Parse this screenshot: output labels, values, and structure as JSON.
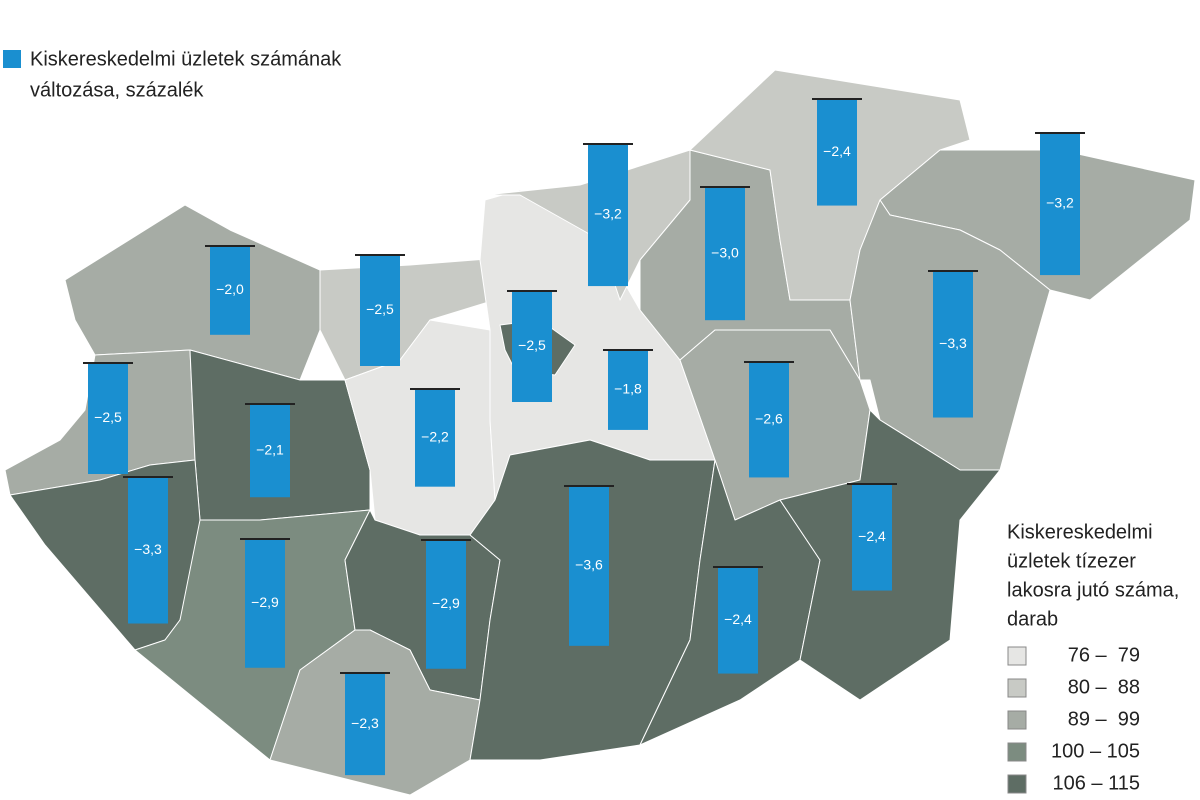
{
  "bar_legend": {
    "color": "#1a8fd0",
    "lines": [
      "Kiskereskedelmi üzletek számának",
      "változása, százalék"
    ]
  },
  "class_legend": {
    "title_lines": [
      "Kiskereskedelmi",
      "üzletek tízezer",
      "lakosra jutó száma,",
      "darab"
    ],
    "classes": [
      {
        "label": "76 –  79",
        "color": "#e6e6e4"
      },
      {
        "label": "80 –  88",
        "color": "#c8cac5"
      },
      {
        "label": "89 –  99",
        "color": "#a6aca5"
      },
      {
        "label": "100 – 105",
        "color": "#7c8c80"
      },
      {
        "label": "106 – 115",
        "color": "#5e6d64"
      }
    ]
  },
  "counties": [
    {
      "value": -2.0,
      "value_label": "−2,0",
      "color": "#a6aca5"
    },
    {
      "value": -2.5,
      "value_label": "−2,5",
      "color": "#c8cac5"
    },
    {
      "value": -2.5,
      "value_label": "−2,5",
      "color": "#a6aca5"
    },
    {
      "value": -2.1,
      "value_label": "−2,1",
      "color": "#5e6d64"
    },
    {
      "value": -2.2,
      "value_label": "−2,2",
      "color": "#e6e6e4"
    },
    {
      "value": -1.8,
      "value_label": "−1,8",
      "color": "#e6e6e4"
    },
    {
      "value": -2.5,
      "value_label": "−2,5",
      "color": "#5e6d64"
    },
    {
      "value": -3.2,
      "value_label": "−3,2",
      "color": "#c8cac5"
    },
    {
      "value": -3.0,
      "value_label": "−3,0",
      "color": "#a6aca5"
    },
    {
      "value": -2.4,
      "value_label": "−2,4",
      "color": "#c8cac5"
    },
    {
      "value": -3.2,
      "value_label": "−3,2",
      "color": "#a6aca5"
    },
    {
      "value": -3.3,
      "value_label": "−3,3",
      "color": "#a6aca5"
    },
    {
      "value": -2.6,
      "value_label": "−2,6",
      "color": "#a6aca5"
    },
    {
      "value": -3.3,
      "value_label": "−3,3",
      "color": "#5e6d64"
    },
    {
      "value": -2.9,
      "value_label": "−2,9",
      "color": "#7c8c80"
    },
    {
      "value": -2.9,
      "value_label": "−2,9",
      "color": "#5e6d64"
    },
    {
      "value": -2.3,
      "value_label": "−2,3",
      "color": "#a6aca5"
    },
    {
      "value": -3.6,
      "value_label": "−3,6",
      "color": "#5e6d64"
    },
    {
      "value": -2.4,
      "value_label": "−2,4",
      "color": "#5e6d64"
    },
    {
      "value": -2.4,
      "value_label": "−2,4",
      "color": "#5e6d64"
    }
  ]
}
